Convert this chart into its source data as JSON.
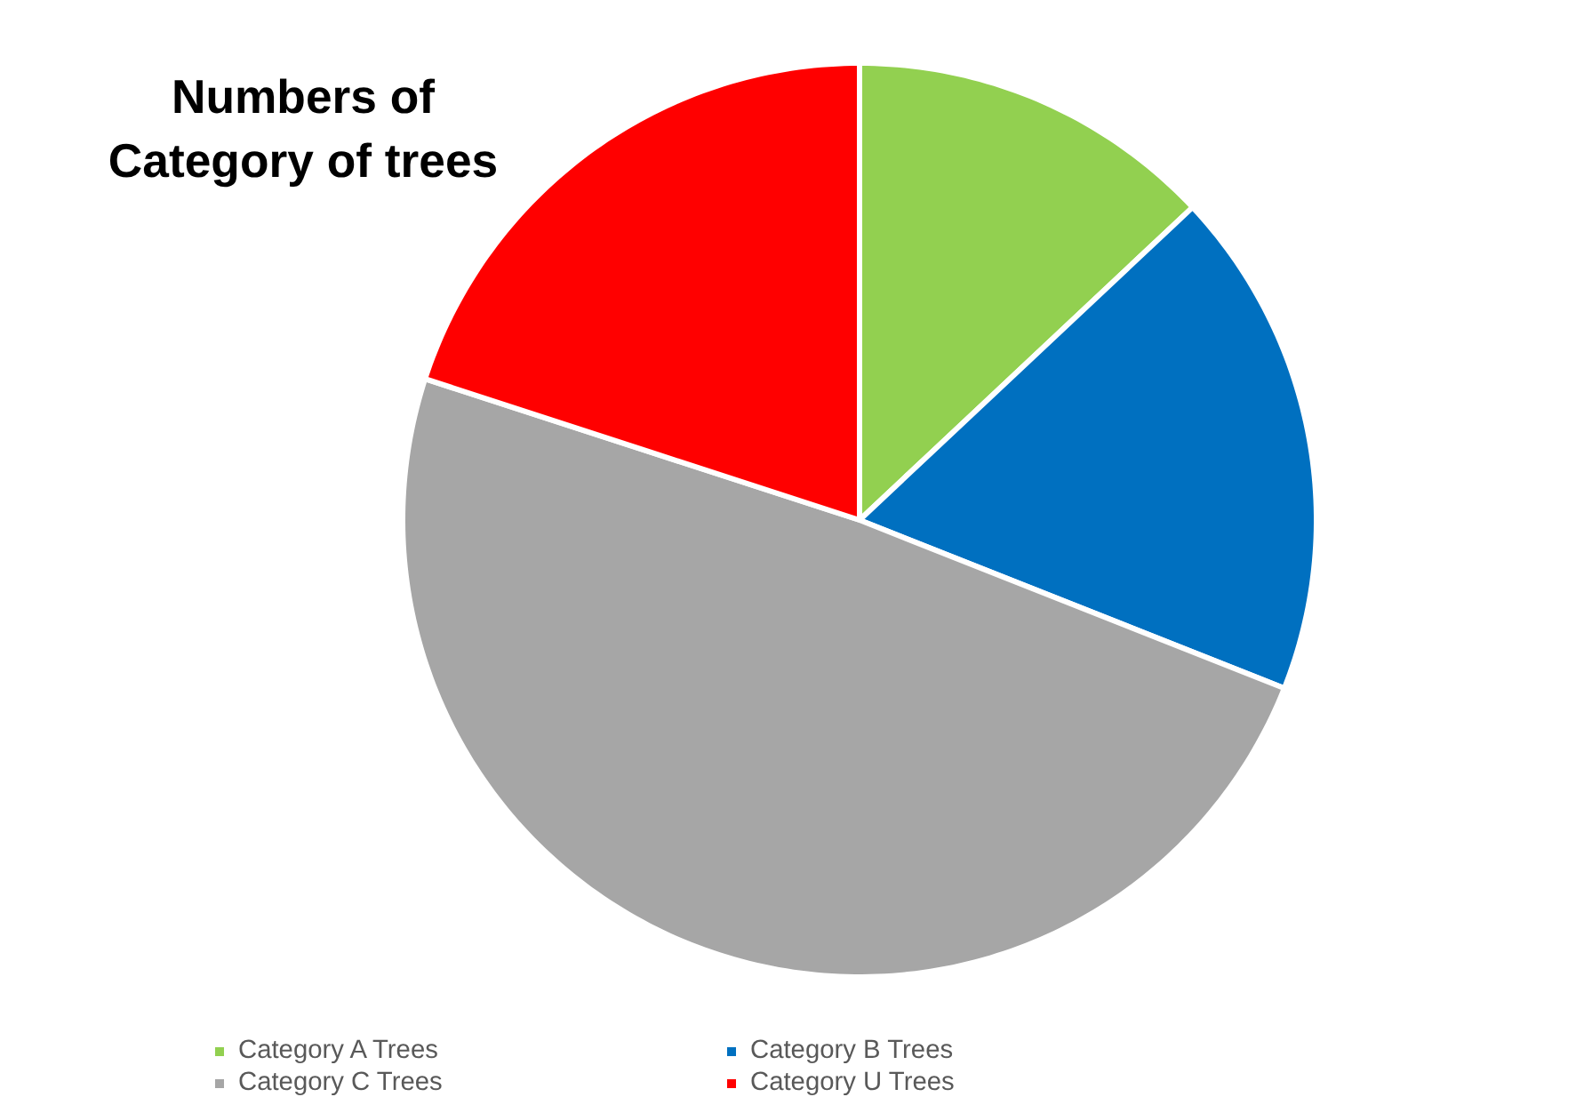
{
  "chart_data": {
    "type": "pie",
    "title": "Numbers of\nCategory of trees",
    "categories": [
      "Category A Trees",
      "Category B Trees",
      "Category C Trees",
      "Category U Trees"
    ],
    "values": [
      13,
      18,
      49,
      20
    ],
    "colors": [
      "#92d050",
      "#0070c0",
      "#a6a6a6",
      "#ff0000"
    ],
    "legend": "bottom"
  }
}
